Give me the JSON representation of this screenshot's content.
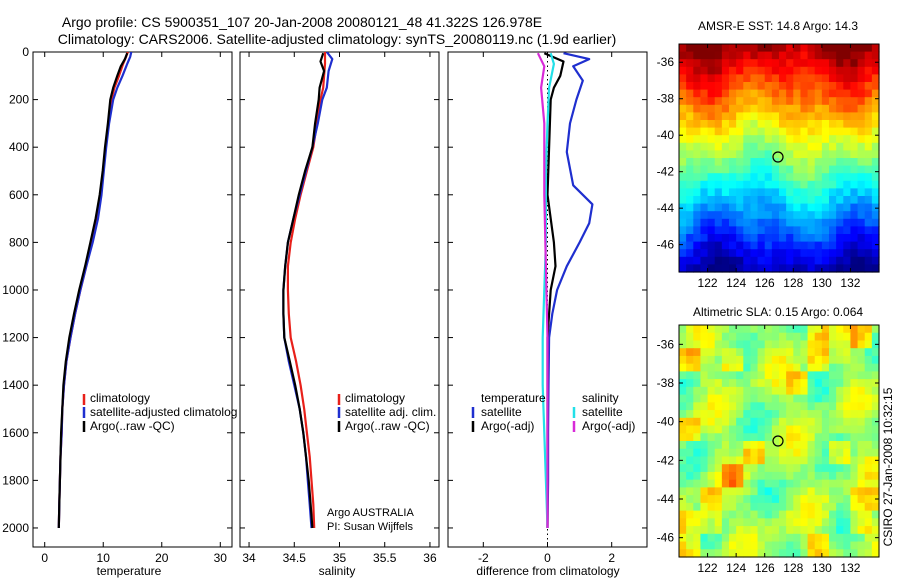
{
  "title": {
    "line1": "Argo profile: CS 5900351_107 20-Jan-2008 20080121_48 41.322S 126.978E",
    "line2": "Climatology: CARS2006. Satellite-adjusted climatology: synTS_20080119.nc (1.9d earlier)"
  },
  "side_label": "CSIRO 27-Jan-2008 10:32:15",
  "credits": [
    "Argo AUSTRALIA",
    "PI: Susan Wijffels"
  ],
  "colors": {
    "red": "#e8201a",
    "blue": "#1f2fcf",
    "black": "#000000",
    "cyan": "#22e0e8",
    "magenta": "#d82ad8"
  },
  "chart_data": [
    {
      "type": "line",
      "id": "temperature",
      "xlabel": "temperature",
      "ylabel": "",
      "xlim": [
        -2,
        32
      ],
      "ylim": [
        0,
        2080
      ],
      "y_reversed": true,
      "xticks": [
        0,
        10,
        20,
        30
      ],
      "yticks": [
        0,
        200,
        400,
        600,
        800,
        1000,
        1200,
        1400,
        1600,
        1800,
        2000
      ],
      "legend": {
        "placement": "lower-right",
        "entries": [
          {
            "label": "climatology",
            "color": "red"
          },
          {
            "label": "satellite-adjusted climatolog",
            "color": "blue"
          },
          {
            "label": "Argo(..raw -QC)",
            "color": "black"
          }
        ]
      },
      "series": [
        {
          "name": "climatology",
          "color": "red",
          "points": [
            [
              14.2,
              0
            ],
            [
              13.9,
              20
            ],
            [
              13.4,
              50
            ],
            [
              12.7,
              100
            ],
            [
              11.9,
              150
            ],
            [
              11.4,
              200
            ],
            [
              10.9,
              300
            ],
            [
              10.4,
              400
            ],
            [
              10.0,
              500
            ],
            [
              9.6,
              600
            ],
            [
              9.0,
              700
            ],
            [
              8.1,
              800
            ],
            [
              7.1,
              900
            ],
            [
              6.1,
              1000
            ],
            [
              5.2,
              1100
            ],
            [
              4.4,
              1200
            ],
            [
              3.7,
              1300
            ],
            [
              3.3,
              1400
            ],
            [
              3.0,
              1500
            ],
            [
              2.9,
              1600
            ],
            [
              2.7,
              1700
            ],
            [
              2.6,
              1800
            ],
            [
              2.5,
              1900
            ],
            [
              2.4,
              2000
            ]
          ]
        },
        {
          "name": "satellite-adjusted climatology",
          "color": "blue",
          "points": [
            [
              14.8,
              0
            ],
            [
              14.6,
              20
            ],
            [
              14.1,
              50
            ],
            [
              13.3,
              100
            ],
            [
              12.4,
              150
            ],
            [
              11.7,
              200
            ],
            [
              11.0,
              300
            ],
            [
              10.5,
              400
            ],
            [
              10.1,
              500
            ],
            [
              9.7,
              600
            ],
            [
              9.1,
              700
            ],
            [
              8.2,
              800
            ],
            [
              7.1,
              900
            ],
            [
              6.1,
              1000
            ],
            [
              5.2,
              1100
            ],
            [
              4.4,
              1200
            ],
            [
              3.7,
              1300
            ],
            [
              3.3,
              1400
            ],
            [
              3.0,
              1500
            ],
            [
              2.9,
              1600
            ],
            [
              2.7,
              1700
            ],
            [
              2.6,
              1800
            ],
            [
              2.5,
              1900
            ],
            [
              2.4,
              2000
            ]
          ]
        },
        {
          "name": "Argo(..raw -QC)",
          "color": "black",
          "points": [
            [
              14.1,
              5
            ],
            [
              13.7,
              30
            ],
            [
              13.0,
              60
            ],
            [
              12.4,
              100
            ],
            [
              11.7,
              150
            ],
            [
              11.2,
              200
            ],
            [
              10.8,
              300
            ],
            [
              10.3,
              400
            ],
            [
              9.9,
              500
            ],
            [
              9.4,
              600
            ],
            [
              8.7,
              700
            ],
            [
              7.8,
              800
            ],
            [
              6.9,
              900
            ],
            [
              5.9,
              1000
            ],
            [
              5.0,
              1100
            ],
            [
              4.2,
              1200
            ],
            [
              3.6,
              1300
            ],
            [
              3.2,
              1400
            ],
            [
              3.0,
              1500
            ],
            [
              2.8,
              1600
            ],
            [
              2.7,
              1700
            ],
            [
              2.6,
              1800
            ],
            [
              2.5,
              1900
            ],
            [
              2.4,
              2000
            ]
          ]
        }
      ]
    },
    {
      "type": "line",
      "id": "salinity",
      "xlabel": "salinity",
      "ylabel": "",
      "xlim": [
        33.9,
        36.1
      ],
      "ylim": [
        0,
        2080
      ],
      "y_reversed": true,
      "xticks": [
        34,
        34.5,
        35,
        35.5,
        36
      ],
      "yticks": [
        0,
        200,
        400,
        600,
        800,
        1000,
        1200,
        1400,
        1600,
        1800,
        2000
      ],
      "legend": {
        "placement": "lower-right",
        "entries": [
          {
            "label": "climatology",
            "color": "red"
          },
          {
            "label": "satellite adj. clim.",
            "color": "blue"
          },
          {
            "label": "Argo(..raw -QC)",
            "color": "black"
          }
        ]
      },
      "series": [
        {
          "name": "climatology",
          "color": "red",
          "points": [
            [
              34.84,
              0
            ],
            [
              34.84,
              50
            ],
            [
              34.83,
              100
            ],
            [
              34.82,
              150
            ],
            [
              34.79,
              200
            ],
            [
              34.75,
              300
            ],
            [
              34.71,
              400
            ],
            [
              34.64,
              500
            ],
            [
              34.57,
              600
            ],
            [
              34.51,
              700
            ],
            [
              34.46,
              800
            ],
            [
              34.43,
              900
            ],
            [
              34.43,
              1000
            ],
            [
              34.44,
              1100
            ],
            [
              34.46,
              1200
            ],
            [
              34.52,
              1300
            ],
            [
              34.57,
              1400
            ],
            [
              34.61,
              1500
            ],
            [
              34.64,
              1600
            ],
            [
              34.67,
              1700
            ],
            [
              34.69,
              1800
            ],
            [
              34.71,
              1900
            ],
            [
              34.72,
              2000
            ]
          ]
        },
        {
          "name": "satellite adj. clim.",
          "color": "blue",
          "points": [
            [
              34.86,
              0
            ],
            [
              34.92,
              30
            ],
            [
              34.88,
              80
            ],
            [
              34.86,
              150
            ],
            [
              34.81,
              200
            ],
            [
              34.76,
              300
            ],
            [
              34.7,
              400
            ],
            [
              34.63,
              500
            ],
            [
              34.56,
              600
            ],
            [
              34.49,
              700
            ],
            [
              34.43,
              800
            ],
            [
              34.4,
              900
            ],
            [
              34.38,
              1000
            ],
            [
              34.38,
              1100
            ],
            [
              34.39,
              1200
            ],
            [
              34.44,
              1300
            ],
            [
              34.5,
              1400
            ],
            [
              34.56,
              1500
            ],
            [
              34.6,
              1600
            ],
            [
              34.63,
              1700
            ],
            [
              34.65,
              1800
            ],
            [
              34.67,
              1900
            ],
            [
              34.69,
              2000
            ]
          ]
        },
        {
          "name": "Argo(..raw -QC)",
          "color": "black",
          "points": [
            [
              34.82,
              5
            ],
            [
              34.79,
              40
            ],
            [
              34.83,
              80
            ],
            [
              34.78,
              150
            ],
            [
              34.77,
              200
            ],
            [
              34.73,
              300
            ],
            [
              34.7,
              400
            ],
            [
              34.62,
              500
            ],
            [
              34.55,
              600
            ],
            [
              34.49,
              700
            ],
            [
              34.43,
              800
            ],
            [
              34.4,
              900
            ],
            [
              34.38,
              1000
            ],
            [
              34.38,
              1100
            ],
            [
              34.39,
              1200
            ],
            [
              34.45,
              1300
            ],
            [
              34.51,
              1400
            ],
            [
              34.56,
              1500
            ],
            [
              34.6,
              1600
            ],
            [
              34.63,
              1700
            ],
            [
              34.66,
              1800
            ],
            [
              34.68,
              1900
            ],
            [
              34.7,
              2000
            ]
          ]
        }
      ]
    },
    {
      "type": "line",
      "id": "difference",
      "xlabel": "difference from climatology",
      "ylabel": "",
      "xlim": [
        -3.1,
        3.1
      ],
      "ylim": [
        0,
        2080
      ],
      "y_reversed": true,
      "xticks": [
        -2,
        0,
        2
      ],
      "yticks": [
        0,
        200,
        400,
        600,
        800,
        1000,
        1200,
        1400,
        1600,
        1800,
        2000
      ],
      "zero_line": true,
      "legend": {
        "placement": "lower",
        "groups": [
          {
            "heading": "temperature",
            "entries": [
              {
                "label": "satellite",
                "color": "blue"
              },
              {
                "label": "Argo(-adj)",
                "color": "black"
              }
            ]
          },
          {
            "heading": "salinity",
            "entries": [
              {
                "label": "satellite",
                "color": "cyan"
              },
              {
                "label": "Argo(-adj)",
                "color": "magenta"
              }
            ]
          }
        ]
      },
      "series": [
        {
          "name": "temperature satellite",
          "color": "blue",
          "points": [
            [
              0.5,
              5
            ],
            [
              1.3,
              30
            ],
            [
              0.8,
              60
            ],
            [
              1.1,
              120
            ],
            [
              0.9,
              200
            ],
            [
              0.7,
              300
            ],
            [
              0.6,
              420
            ],
            [
              0.8,
              560
            ],
            [
              1.4,
              640
            ],
            [
              1.3,
              720
            ],
            [
              1.0,
              800
            ],
            [
              0.6,
              900
            ],
            [
              0.3,
              1000
            ],
            [
              0.15,
              1100
            ],
            [
              0.05,
              1200
            ],
            [
              0.03,
              1400
            ],
            [
              0.02,
              1600
            ],
            [
              0.02,
              1800
            ],
            [
              0.0,
              2000
            ]
          ]
        },
        {
          "name": "temperature Argo(-adj)",
          "color": "black",
          "points": [
            [
              -0.1,
              5
            ],
            [
              0.5,
              40
            ],
            [
              0.4,
              100
            ],
            [
              0.2,
              150
            ],
            [
              0.1,
              200
            ],
            [
              0.05,
              400
            ],
            [
              0.0,
              600
            ],
            [
              0.2,
              800
            ],
            [
              0.25,
              900
            ],
            [
              0.1,
              1000
            ],
            [
              0.05,
              1100
            ],
            [
              0.0,
              1200
            ],
            [
              0.0,
              1500
            ],
            [
              0.0,
              1800
            ],
            [
              0.0,
              2000
            ]
          ]
        },
        {
          "name": "salinity satellite",
          "color": "cyan",
          "points": [
            [
              0.1,
              5
            ],
            [
              0.2,
              50
            ],
            [
              0.05,
              150
            ],
            [
              0.0,
              300
            ],
            [
              -0.05,
              500
            ],
            [
              -0.05,
              800
            ],
            [
              -0.1,
              1000
            ],
            [
              -0.15,
              1200
            ],
            [
              -0.15,
              1400
            ],
            [
              -0.1,
              1600
            ],
            [
              -0.05,
              1800
            ],
            [
              0.0,
              2000
            ]
          ]
        },
        {
          "name": "salinity Argo(-adj)",
          "color": "magenta",
          "points": [
            [
              -0.3,
              5
            ],
            [
              -0.1,
              60
            ],
            [
              -0.2,
              150
            ],
            [
              -0.1,
              300
            ],
            [
              -0.1,
              600
            ],
            [
              -0.05,
              900
            ],
            [
              0.0,
              1200
            ],
            [
              0.0,
              1600
            ],
            [
              0.0,
              2000
            ]
          ]
        }
      ]
    },
    {
      "type": "heatmap",
      "id": "sst_map",
      "title": "AMSR-E SST: 14.8 Argo: 14.3",
      "xlim": [
        120,
        134
      ],
      "ylim": [
        -47.5,
        -35
      ],
      "xticks": [
        122,
        124,
        126,
        128,
        130,
        132
      ],
      "yticks": [
        -36,
        -38,
        -40,
        -42,
        -44,
        -46
      ],
      "colormap": "jet",
      "field": "latitude-gradient: warm (red) in north, cool (blue) in south",
      "marker": {
        "lon": 126.978,
        "lat": -41.322
      }
    },
    {
      "type": "heatmap",
      "id": "sla_map",
      "title": "Altimetric SLA: 0.15 Argo: 0.064",
      "xlim": [
        120,
        134
      ],
      "ylim": [
        -47,
        -35
      ],
      "xticks": [
        122,
        124,
        126,
        128,
        130,
        132
      ],
      "yticks": [
        -36,
        -38,
        -40,
        -42,
        -44,
        -46
      ],
      "colormap": "jet",
      "field": "mottled green/yellow with scattered orange patches",
      "marker": {
        "lon": 126.978,
        "lat": -41.322
      }
    }
  ]
}
